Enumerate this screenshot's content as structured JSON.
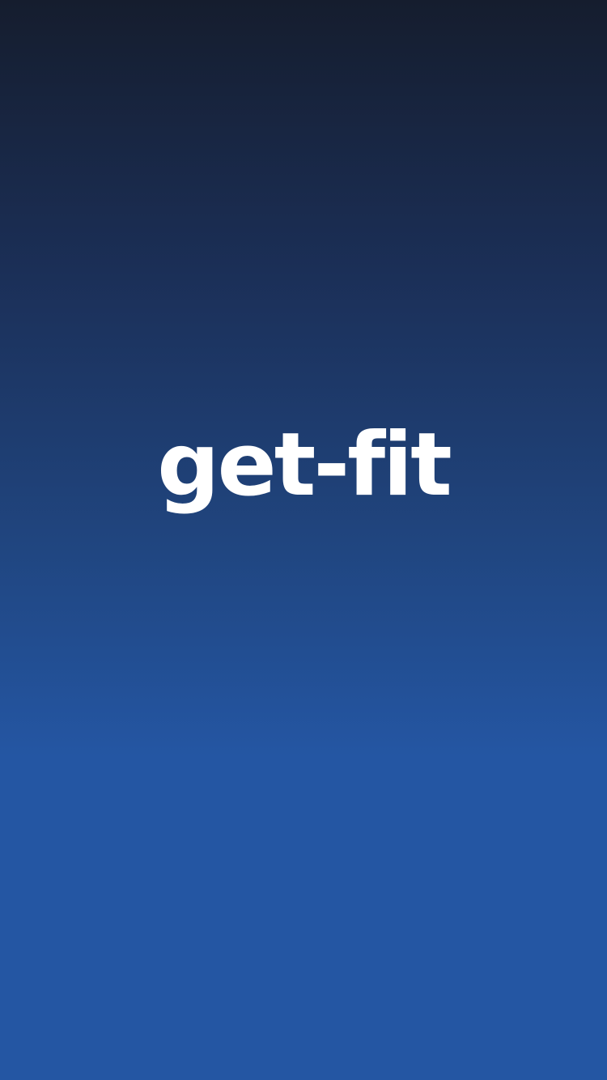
{
  "splash": {
    "app_name": "get-fit",
    "colors": {
      "background_top": "#151d2e",
      "background_bottom": "#2456a3",
      "logo_text": "#ffffff"
    }
  }
}
